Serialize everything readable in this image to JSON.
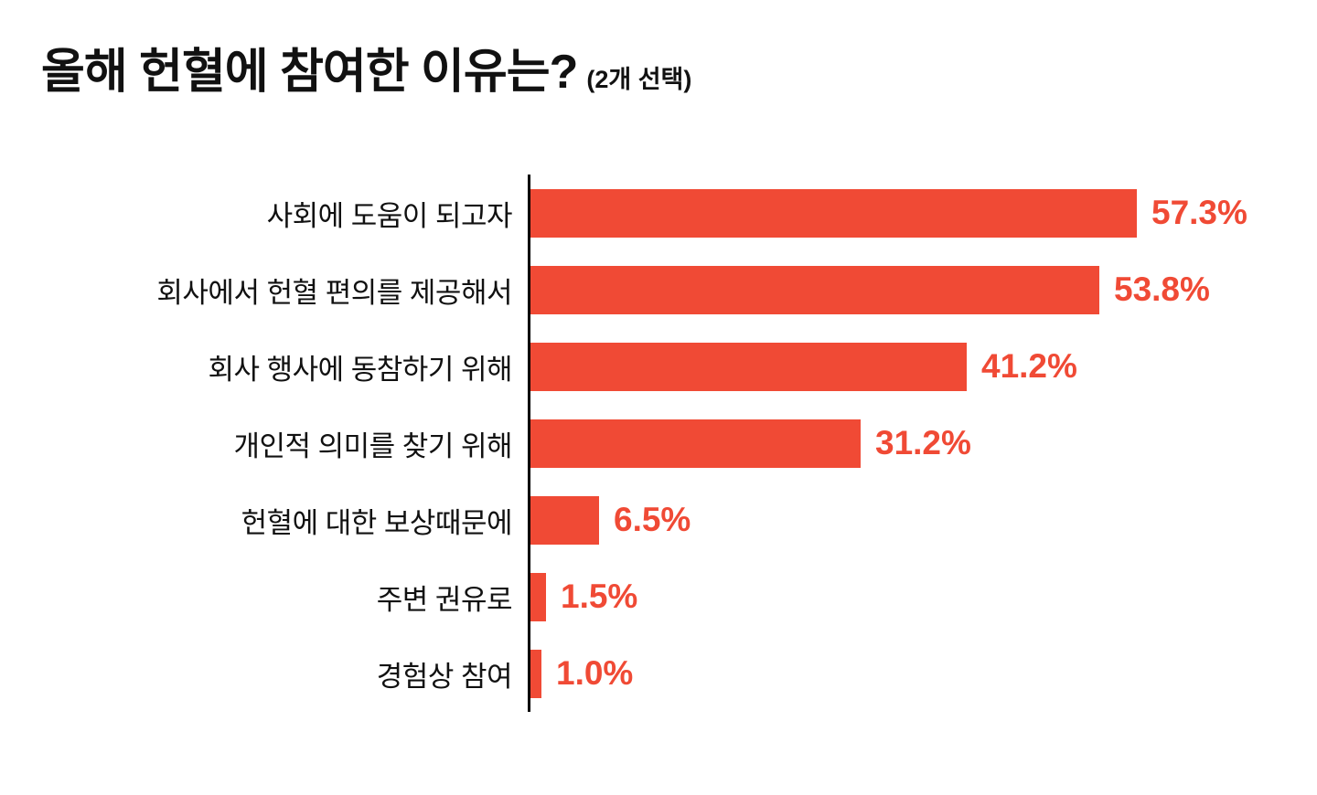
{
  "title": {
    "main": "올해 헌혈에 참여한 이유는?",
    "note": "(2개 선택)"
  },
  "colors": {
    "bar": "#F04A35",
    "value_label": "#F04A35",
    "axis": "#000000",
    "title_text": "#111111"
  },
  "chart_data": {
    "type": "bar",
    "orientation": "horizontal",
    "title": "올해 헌혈에 참여한 이유는? (2개 선택)",
    "categories": [
      "사회에 도움이 되고자",
      "회사에서 헌혈 편의를 제공해서",
      "회사 행사에 동참하기 위해",
      "개인적 의미를 찾기 위해",
      "헌혈에 대한 보상때문에",
      "주변 권유로",
      "경험상 참여"
    ],
    "values": [
      57.3,
      53.8,
      41.2,
      31.2,
      6.5,
      1.5,
      1.0
    ],
    "value_labels": [
      "57.3%",
      "53.8%",
      "41.2%",
      "31.2%",
      "6.5%",
      "1.5%",
      "1.0%"
    ],
    "xlabel": "",
    "ylabel": "",
    "xlim": [
      0,
      62
    ],
    "grid": false,
    "legend": null,
    "value_label_position": "end-of-bar"
  }
}
